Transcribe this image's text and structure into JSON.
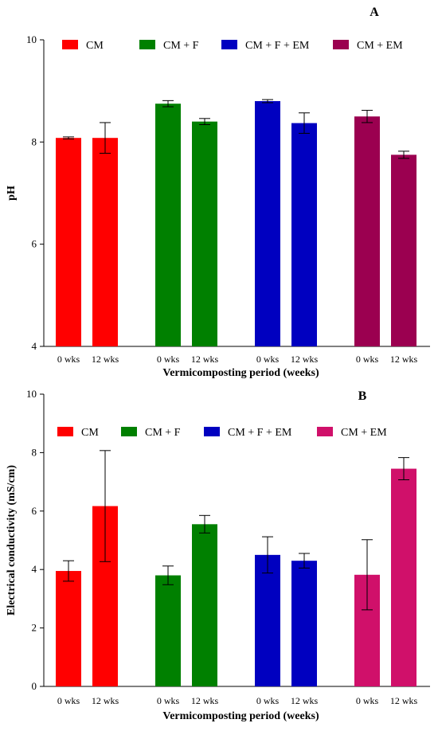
{
  "chart_data": [
    {
      "type": "bar",
      "panel_label": "A",
      "xlabel": "Vermicomposting period (weeks)",
      "ylabel": "pH",
      "ylim": [
        4,
        10
      ],
      "yticks": [
        4,
        6,
        8,
        10
      ],
      "grid": false,
      "legend_position": "top",
      "groups": [
        {
          "name": "CM",
          "color": "#ff0000",
          "categories": [
            "0 wks",
            "12 wks"
          ],
          "values": [
            8.08,
            8.08
          ],
          "errors": [
            0.02,
            0.3
          ]
        },
        {
          "name": "CM + F",
          "color": "#008000",
          "categories": [
            "0 wks",
            "12 wks"
          ],
          "values": [
            8.75,
            8.4
          ],
          "errors": [
            0.06,
            0.06
          ]
        },
        {
          "name": "CM + F + EM",
          "color": "#0000c0",
          "categories": [
            "0 wks",
            "12 wks"
          ],
          "values": [
            8.8,
            8.37
          ],
          "errors": [
            0.03,
            0.2
          ]
        },
        {
          "name": "CM + EM",
          "color": "#9b0050",
          "categories": [
            "0 wks",
            "12 wks"
          ],
          "values": [
            8.5,
            7.75
          ],
          "errors": [
            0.12,
            0.07
          ]
        }
      ]
    },
    {
      "type": "bar",
      "panel_label": "B",
      "xlabel": "Vermicomposting period (weeks)",
      "ylabel": "Electrical conductivity (mS/cm)",
      "ylim": [
        0,
        10
      ],
      "yticks": [
        0,
        2,
        4,
        6,
        8,
        10
      ],
      "grid": false,
      "legend_position": "top",
      "groups": [
        {
          "name": "CM",
          "color": "#ff0000",
          "categories": [
            "0 wks",
            "12 wks"
          ],
          "values": [
            3.95,
            6.17
          ],
          "errors": [
            0.35,
            1.9
          ]
        },
        {
          "name": "CM + F",
          "color": "#008000",
          "categories": [
            "0 wks",
            "12 wks"
          ],
          "values": [
            3.8,
            5.55
          ],
          "errors": [
            0.32,
            0.3
          ]
        },
        {
          "name": "CM + F + EM",
          "color": "#0000c0",
          "categories": [
            "0 wks",
            "12 wks"
          ],
          "values": [
            4.5,
            4.3
          ],
          "errors": [
            0.62,
            0.25
          ]
        },
        {
          "name": "CM + EM",
          "color": "#d0106a",
          "categories": [
            "0 wks",
            "12 wks"
          ],
          "values": [
            3.82,
            7.45
          ],
          "errors": [
            1.2,
            0.38
          ]
        }
      ]
    }
  ]
}
